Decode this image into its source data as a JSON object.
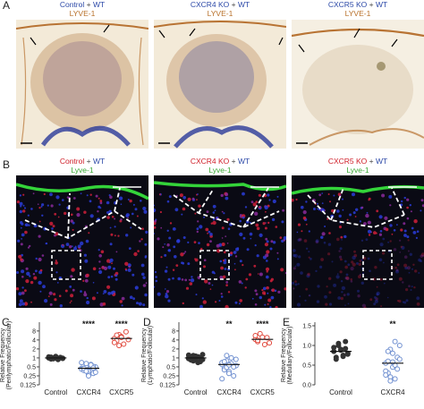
{
  "figure": {
    "panel_labels": {
      "A": "A",
      "B": "B",
      "C": "C",
      "D": "D",
      "E": "E"
    },
    "row_a": [
      {
        "title_parts": [
          {
            "t": "Control",
            "c": "#2d4aa8"
          },
          {
            "t": " + ",
            "c": "#444"
          },
          {
            "t": "WT",
            "c": "#2d4aa8"
          }
        ],
        "stain": "LYVE-1",
        "stain_color": "#b8702a"
      },
      {
        "title_parts": [
          {
            "t": "CXCR4 KO",
            "c": "#2d4aa8"
          },
          {
            "t": " + ",
            "c": "#444"
          },
          {
            "t": "WT",
            "c": "#2d4aa8"
          }
        ],
        "stain": "LYVE-1",
        "stain_color": "#b8702a"
      },
      {
        "title_parts": [
          {
            "t": "CXCR5 KO",
            "c": "#2d4aa8"
          },
          {
            "t": " + ",
            "c": "#444"
          },
          {
            "t": "WT",
            "c": "#2d4aa8"
          }
        ],
        "stain": "LYVE-1",
        "stain_color": "#b8702a"
      }
    ],
    "row_b": [
      {
        "title_parts": [
          {
            "t": "Control",
            "c": "#d0202a"
          },
          {
            "t": " + ",
            "c": "#444"
          },
          {
            "t": "WT",
            "c": "#2d4aa8"
          }
        ],
        "stain": "Lyve-1",
        "stain_color": "#3aa836"
      },
      {
        "title_parts": [
          {
            "t": "CXCR4 KO",
            "c": "#d0202a"
          },
          {
            "t": " + ",
            "c": "#444"
          },
          {
            "t": "WT",
            "c": "#2d4aa8"
          }
        ],
        "stain": "Lyve-1",
        "stain_color": "#3aa836"
      },
      {
        "title_parts": [
          {
            "t": "CXCR5 KO",
            "c": "#d0202a"
          },
          {
            "t": " + ",
            "c": "#444"
          },
          {
            "t": "WT",
            "c": "#2d4aa8"
          }
        ],
        "stain": "Lyve-1",
        "stain_color": "#3aa836"
      }
    ]
  },
  "chart_data": [
    {
      "panel": "C",
      "type": "scatter",
      "log_scale": true,
      "ylabel": "Relative Frequency\n(Perilymphatic/Follicular)",
      "yticks": [
        "0.125",
        "0.25",
        "0.5",
        "1",
        "2",
        "4",
        "8"
      ],
      "ylim": [
        0.125,
        12
      ],
      "categories": [
        "Control",
        "CXCR4",
        "CXCR5"
      ],
      "significance": [
        "",
        "****",
        "****"
      ],
      "colors": [
        "#333333",
        "#6f8fd0",
        "#e0483c"
      ],
      "filled": [
        true,
        false,
        false
      ],
      "means": [
        1.0,
        0.45,
        4.5
      ],
      "values": [
        [
          1.0,
          1.05,
          0.95,
          1.1,
          0.9,
          1.02,
          0.98,
          1.08,
          0.92,
          1.0,
          1.12,
          0.88,
          1.04,
          0.96,
          1.0,
          1.06,
          0.94
        ],
        [
          0.45,
          0.4,
          0.55,
          0.35,
          0.6,
          0.3,
          0.5,
          0.42,
          0.38,
          0.65,
          0.28,
          0.48,
          0.52,
          0.33,
          0.7,
          0.44,
          0.36,
          0.25,
          0.58,
          0.46
        ],
        [
          4.5,
          3.8,
          6.0,
          5.2,
          2.9,
          7.5,
          4.1,
          3.3,
          5.8,
          2.6,
          4.9
        ]
      ]
    },
    {
      "panel": "D",
      "type": "scatter",
      "log_scale": true,
      "ylabel": "Relative Frequency\n(Lymphatic/Follicular)",
      "yticks": [
        "0.125",
        "0.25",
        "0.5",
        "1",
        "2",
        "4",
        "8"
      ],
      "ylim": [
        0.125,
        12
      ],
      "categories": [
        "Control",
        "CXCR4",
        "CXCR5"
      ],
      "significance": [
        "",
        "**",
        "****"
      ],
      "colors": [
        "#333333",
        "#6f8fd0",
        "#e0483c"
      ],
      "filled": [
        true,
        false,
        false
      ],
      "means": [
        1.0,
        0.6,
        4.2
      ],
      "values": [
        [
          1.0,
          0.85,
          1.2,
          0.9,
          1.1,
          0.75,
          1.3,
          0.95,
          1.05,
          0.8,
          1.15,
          0.7,
          1.0,
          0.88,
          1.25,
          0.92
        ],
        [
          0.6,
          0.45,
          0.8,
          0.35,
          1.0,
          0.25,
          0.55,
          0.7,
          0.4,
          1.2,
          0.3,
          0.65,
          0.5,
          0.9,
          0.2,
          0.75,
          0.48,
          0.58
        ],
        [
          4.2,
          3.5,
          6.5,
          5.0,
          2.8,
          4.8,
          3.2,
          5.6,
          3.9
        ]
      ]
    },
    {
      "panel": "E",
      "type": "scatter",
      "log_scale": false,
      "ylabel": "Relative Frequency\n(Medullary/Follicular)",
      "yticks": [
        "0.0",
        "0.5",
        "1.0",
        "1.5"
      ],
      "ylim": [
        0,
        1.5
      ],
      "categories": [
        "Control",
        "CXCR4"
      ],
      "significance": [
        "",
        "**"
      ],
      "colors": [
        "#333333",
        "#6f8fd0"
      ],
      "filled": [
        true,
        false
      ],
      "means": [
        0.85,
        0.55
      ],
      "values": [
        [
          0.85,
          0.7,
          1.0,
          0.9,
          0.75,
          1.1,
          0.8,
          0.95,
          0.65,
          1.05,
          0.88,
          0.72,
          0.92,
          0.78
        ],
        [
          0.55,
          0.3,
          0.9,
          0.45,
          0.15,
          0.7,
          1.0,
          0.35,
          0.6,
          0.2,
          0.8,
          0.5,
          0.4,
          0.65,
          0.25,
          0.85,
          0.1,
          0.58,
          1.1
        ]
      ]
    }
  ]
}
